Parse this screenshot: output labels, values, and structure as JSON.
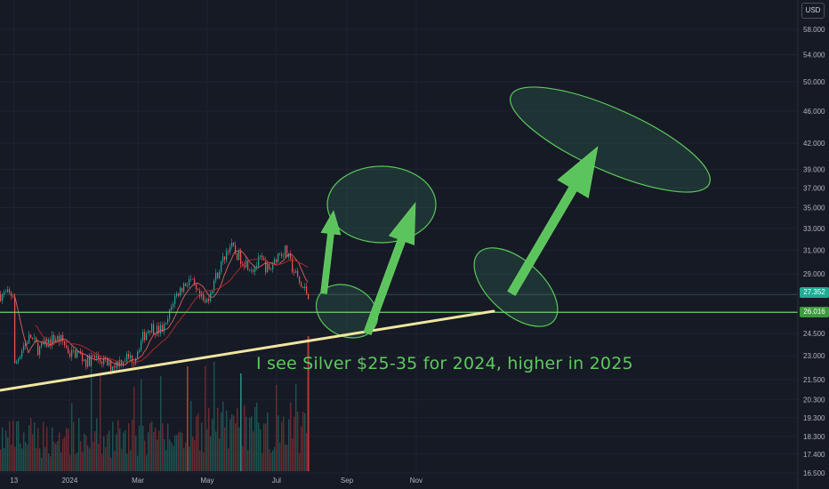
{
  "currency": "USD",
  "annotation_text": "I see Silver $25-35 for 2024, higher in 2025",
  "colors": {
    "background": "#161a25",
    "up": "#26a69a",
    "down": "#ef5350",
    "ma_red": "#c83232",
    "support_line": "#f0e6a0",
    "horizontal_line": "#6fd06f",
    "annotation_green": "#5fc95f"
  },
  "price_badges": [
    {
      "label": "27.352",
      "color": "#22ab94"
    },
    {
      "label": "26.016",
      "color": "#3c9b3c"
    }
  ],
  "chart_data": {
    "type": "candlestick",
    "y_axis": {
      "scale": "log",
      "ticks": [
        16.5,
        17.4,
        18.3,
        19.3,
        20.3,
        21.5,
        23.0,
        24.5,
        26.0,
        27.5,
        29.0,
        31.0,
        33.0,
        35.0,
        37.0,
        39.0,
        42.0,
        46.0,
        50.0,
        54.0,
        58.0
      ],
      "tick_labels": [
        "16.500",
        "17.400",
        "18.300",
        "19.300",
        "20.300",
        "21.500",
        "23.000",
        "24.500",
        "26.000",
        "27.500",
        "29.000",
        "31.000",
        "33.000",
        "35.000",
        "37.000",
        "39.000",
        "42.000",
        "46.000",
        "50.000",
        "54.000",
        "58.000"
      ],
      "range": [
        16.4,
        60.0
      ],
      "ticks_shown": [
        "16.500",
        "17.400",
        "18.300",
        "19.300",
        "20.300",
        "21.500",
        "23.000",
        "24.500",
        "27.500",
        "29.000",
        "31.000",
        "33.000",
        "35.000",
        "37.000",
        "39.000",
        "42.000",
        "46.000",
        "50.000",
        "54.000",
        "58.000"
      ]
    },
    "x_axis": {
      "ticks": [
        "13",
        "2024",
        "Mar",
        "May",
        "Jul",
        "Sep",
        "Nov"
      ]
    },
    "price_path": [
      [
        "2023-11-13",
        22.3
      ],
      [
        "2023-11-20",
        23.6
      ],
      [
        "2023-11-27",
        24.3
      ],
      [
        "2023-12-04",
        23.4
      ],
      [
        "2023-12-11",
        23.8
      ],
      [
        "2023-12-18",
        24.2
      ],
      [
        "2023-12-25",
        24.0
      ],
      [
        "2024-01-01",
        23.1
      ],
      [
        "2024-01-08",
        23.2
      ],
      [
        "2024-01-15",
        22.6
      ],
      [
        "2024-01-22",
        22.9
      ],
      [
        "2024-01-29",
        22.7
      ],
      [
        "2024-02-05",
        22.3
      ],
      [
        "2024-02-12",
        22.6
      ],
      [
        "2024-02-19",
        22.9
      ],
      [
        "2024-02-26",
        22.8
      ],
      [
        "2024-03-04",
        24.1
      ],
      [
        "2024-03-11",
        25.0
      ],
      [
        "2024-03-18",
        24.7
      ],
      [
        "2024-03-25",
        24.9
      ],
      [
        "2024-04-01",
        27.0
      ],
      [
        "2024-04-08",
        27.9
      ],
      [
        "2024-04-15",
        28.6
      ],
      [
        "2024-04-22",
        27.3
      ],
      [
        "2024-04-29",
        26.6
      ],
      [
        "2024-05-06",
        28.3
      ],
      [
        "2024-05-13",
        29.8
      ],
      [
        "2024-05-20",
        31.5
      ],
      [
        "2024-05-27",
        30.6
      ],
      [
        "2024-06-03",
        30.0
      ],
      [
        "2024-06-10",
        29.5
      ],
      [
        "2024-06-17",
        30.2
      ],
      [
        "2024-06-24",
        29.2
      ],
      [
        "2024-07-01",
        30.6
      ],
      [
        "2024-07-08",
        31.0
      ],
      [
        "2024-07-15",
        29.4
      ],
      [
        "2024-07-22",
        28.0
      ],
      [
        "2024-07-29",
        27.35
      ]
    ],
    "horizontal_level": 26.016,
    "last_price": 27.352,
    "support_line": {
      "from": [
        "2023-11-13",
        21.4
      ],
      "to": [
        "2024-10-24",
        26.0
      ]
    }
  }
}
